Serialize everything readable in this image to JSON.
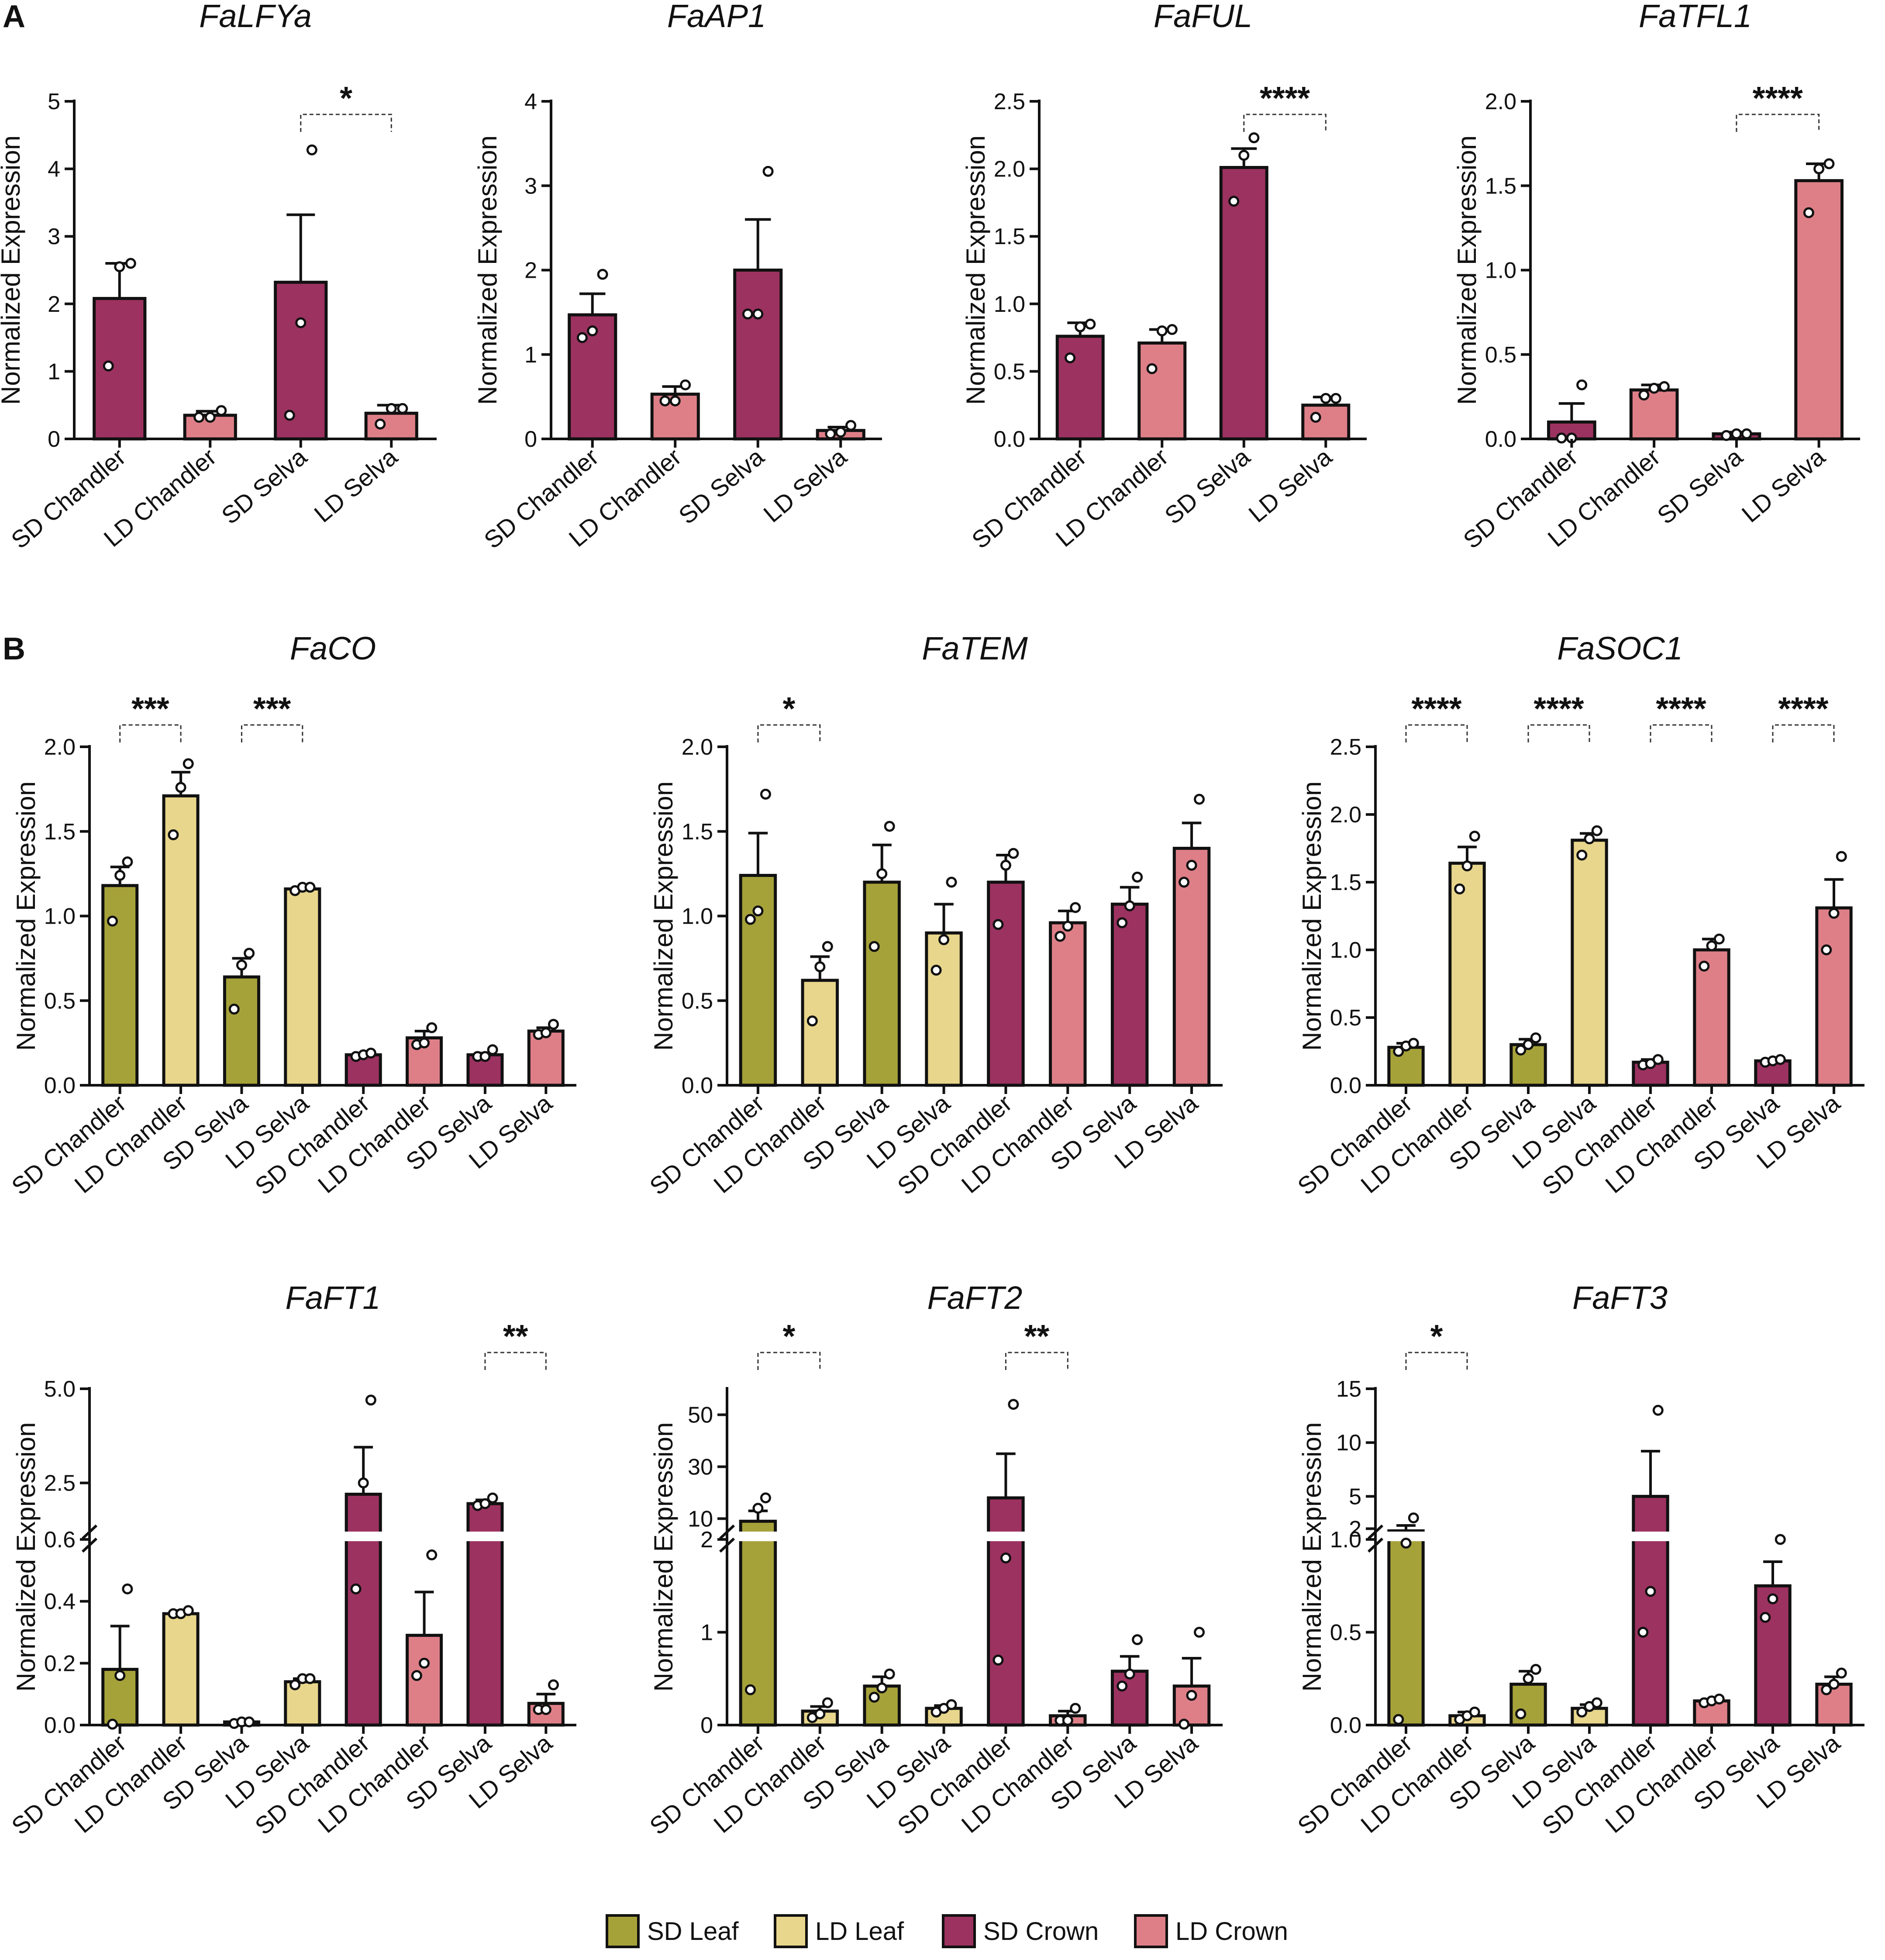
{
  "colors": {
    "SD Leaf": "#a6a23a",
    "LD Leaf": "#e8d68c",
    "SD Crown": "#9c3260",
    "LD Crown": "#de7f88"
  },
  "legend": [
    {
      "label": "SD Leaf",
      "color": "#a6a23a"
    },
    {
      "label": "LD Leaf",
      "color": "#e8d68c"
    },
    {
      "label": "SD Crown",
      "color": "#9c3260"
    },
    {
      "label": "LD Crown",
      "color": "#de7f88"
    }
  ],
  "chart_data": [
    {
      "panel": "A",
      "type": "bar",
      "title": "FaLFYa",
      "ylabel": "Normalized Expression",
      "ylim": [
        0,
        5
      ],
      "yticks": [
        0,
        1,
        2,
        3,
        4,
        5
      ],
      "categories": [
        "SD Chandler",
        "LD Chandler",
        "SD Selva",
        "LD Selva"
      ],
      "groups": [
        "SD Crown",
        "LD Crown",
        "SD Crown",
        "LD Crown"
      ],
      "values": [
        2.08,
        0.35,
        2.32,
        0.38
      ],
      "errors": [
        0.52,
        0.06,
        1.0,
        0.12
      ],
      "points": [
        [
          1.08,
          2.55,
          2.6
        ],
        [
          0.32,
          0.32,
          0.42
        ],
        [
          0.35,
          1.72,
          4.28
        ],
        [
          0.22,
          0.45,
          0.45
        ]
      ],
      "significance": [
        {
          "from": 2,
          "to": 3,
          "label": "*"
        }
      ]
    },
    {
      "panel": "A",
      "type": "bar",
      "title": "FaAP1",
      "ylabel": "Normalized Expression",
      "ylim": [
        0,
        4
      ],
      "yticks": [
        0,
        1,
        2,
        3,
        4
      ],
      "categories": [
        "SD Chandler",
        "LD Chandler",
        "SD Selva",
        "LD Selva"
      ],
      "groups": [
        "SD Crown",
        "LD Crown",
        "SD Crown",
        "LD Crown"
      ],
      "values": [
        1.47,
        0.53,
        2.0,
        0.1
      ],
      "errors": [
        0.25,
        0.09,
        0.6,
        0.04
      ],
      "points": [
        [
          1.2,
          1.28,
          1.95
        ],
        [
          0.45,
          0.45,
          0.64
        ],
        [
          1.48,
          1.48,
          3.17
        ],
        [
          0.06,
          0.08,
          0.16
        ]
      ],
      "significance": []
    },
    {
      "panel": "A",
      "type": "bar",
      "title": "FaFUL",
      "ylabel": "Normalized Expression",
      "ylim": [
        0,
        2.5
      ],
      "yticks": [
        0.0,
        0.5,
        1.0,
        1.5,
        2.0,
        2.5
      ],
      "categories": [
        "SD Chandler",
        "LD Chandler",
        "SD Selva",
        "LD Selva"
      ],
      "groups": [
        "SD Crown",
        "LD Crown",
        "SD Crown",
        "LD Crown"
      ],
      "values": [
        0.76,
        0.71,
        2.01,
        0.25
      ],
      "errors": [
        0.1,
        0.1,
        0.14,
        0.06
      ],
      "points": [
        [
          0.6,
          0.83,
          0.85
        ],
        [
          0.52,
          0.8,
          0.81
        ],
        [
          1.76,
          2.1,
          2.23
        ],
        [
          0.16,
          0.3,
          0.3
        ]
      ],
      "significance": [
        {
          "from": 2,
          "to": 3,
          "label": "****"
        }
      ]
    },
    {
      "panel": "A",
      "type": "bar",
      "title": "FaTFL1",
      "ylabel": "Normalized Expression",
      "ylim": [
        0,
        2.0
      ],
      "yticks": [
        0.0,
        0.5,
        1.0,
        1.5,
        2.0
      ],
      "categories": [
        "SD Chandler",
        "LD Chandler",
        "SD Selva",
        "LD Selva"
      ],
      "groups": [
        "SD Crown",
        "LD Crown",
        "SD Crown",
        "LD Crown"
      ],
      "values": [
        0.1,
        0.29,
        0.03,
        1.53
      ],
      "errors": [
        0.11,
        0.03,
        0.01,
        0.1
      ],
      "points": [
        [
          0.0,
          0.0,
          0.32
        ],
        [
          0.26,
          0.3,
          0.31
        ],
        [
          0.02,
          0.03,
          0.03
        ],
        [
          1.34,
          1.6,
          1.63
        ]
      ],
      "significance": [
        {
          "from": 2,
          "to": 3,
          "label": "****"
        }
      ]
    },
    {
      "panel": "B",
      "type": "bar",
      "title": "FaCO",
      "ylabel": "Normalized Expression",
      "ylim": [
        0,
        2.0
      ],
      "yticks": [
        0.0,
        0.5,
        1.0,
        1.5,
        2.0
      ],
      "categories": [
        "SD Chandler",
        "LD Chandler",
        "SD Selva",
        "LD Selva",
        "SD Chandler",
        "LD Chandler",
        "SD Selva",
        "LD Selva"
      ],
      "groups": [
        "SD Leaf",
        "LD Leaf",
        "SD Leaf",
        "LD Leaf",
        "SD Crown",
        "LD Crown",
        "SD Crown",
        "LD Crown"
      ],
      "values": [
        1.18,
        1.71,
        0.64,
        1.16,
        0.18,
        0.28,
        0.18,
        0.32
      ],
      "errors": [
        0.11,
        0.14,
        0.11,
        0.01,
        0.01,
        0.04,
        0.01,
        0.02
      ],
      "points": [
        [
          0.97,
          1.24,
          1.32
        ],
        [
          1.48,
          1.76,
          1.9
        ],
        [
          0.45,
          0.71,
          0.78
        ],
        [
          1.15,
          1.17,
          1.17
        ],
        [
          0.17,
          0.18,
          0.19
        ],
        [
          0.24,
          0.25,
          0.34
        ],
        [
          0.17,
          0.17,
          0.21
        ],
        [
          0.3,
          0.31,
          0.36
        ]
      ],
      "significance": [
        {
          "from": 0,
          "to": 1,
          "label": "***"
        },
        {
          "from": 2,
          "to": 3,
          "label": "***"
        }
      ]
    },
    {
      "panel": "B",
      "type": "bar",
      "title": "FaTEM",
      "ylabel": "Normalized Expression",
      "ylim": [
        0,
        2.0
      ],
      "yticks": [
        0.0,
        0.5,
        1.0,
        1.5,
        2.0
      ],
      "categories": [
        "SD Chandler",
        "LD Chandler",
        "SD Selva",
        "LD Selva",
        "SD Chandler",
        "LD Chandler",
        "SD Selva",
        "LD Selva"
      ],
      "groups": [
        "SD Leaf",
        "LD Leaf",
        "SD Leaf",
        "LD Leaf",
        "SD Crown",
        "LD Crown",
        "SD Crown",
        "LD Crown"
      ],
      "values": [
        1.24,
        0.62,
        1.2,
        0.9,
        1.2,
        0.96,
        1.07,
        1.4
      ],
      "errors": [
        0.25,
        0.14,
        0.22,
        0.17,
        0.16,
        0.07,
        0.1,
        0.15
      ],
      "points": [
        [
          0.98,
          1.03,
          1.72
        ],
        [
          0.38,
          0.7,
          0.82
        ],
        [
          0.82,
          1.25,
          1.53
        ],
        [
          0.68,
          0.86,
          1.2
        ],
        [
          0.95,
          1.3,
          1.37
        ],
        [
          0.88,
          0.94,
          1.05
        ],
        [
          0.96,
          1.06,
          1.23
        ],
        [
          1.2,
          1.3,
          1.69
        ]
      ],
      "significance": [
        {
          "from": 0,
          "to": 1,
          "label": "*"
        }
      ]
    },
    {
      "panel": "B",
      "type": "bar",
      "title": "FaSOC1",
      "ylabel": "Normalized Expression",
      "ylim": [
        0,
        2.5
      ],
      "yticks": [
        0.0,
        0.5,
        1.0,
        1.5,
        2.0,
        2.5
      ],
      "categories": [
        "SD Chandler",
        "LD Chandler",
        "SD Selva",
        "LD Selva",
        "SD Chandler",
        "LD Chandler",
        "SD Selva",
        "LD Selva"
      ],
      "groups": [
        "SD Leaf",
        "LD Leaf",
        "SD Leaf",
        "LD Leaf",
        "SD Crown",
        "LD Crown",
        "SD Crown",
        "LD Crown"
      ],
      "values": [
        0.28,
        1.64,
        0.3,
        1.81,
        0.17,
        1.0,
        0.18,
        1.31
      ],
      "errors": [
        0.03,
        0.12,
        0.04,
        0.05,
        0.02,
        0.08,
        0.01,
        0.21
      ],
      "points": [
        [
          0.25,
          0.29,
          0.31
        ],
        [
          1.45,
          1.62,
          1.84
        ],
        [
          0.26,
          0.3,
          0.35
        ],
        [
          1.7,
          1.82,
          1.88
        ],
        [
          0.15,
          0.16,
          0.19
        ],
        [
          0.88,
          1.03,
          1.08
        ],
        [
          0.17,
          0.18,
          0.19
        ],
        [
          1.0,
          1.27,
          1.69
        ]
      ],
      "significance": [
        {
          "from": 0,
          "to": 1,
          "label": "****"
        },
        {
          "from": 2,
          "to": 3,
          "label": "****"
        },
        {
          "from": 4,
          "to": 5,
          "label": "****"
        },
        {
          "from": 6,
          "to": 7,
          "label": "****"
        }
      ]
    },
    {
      "panel": "B",
      "type": "bar",
      "title": "FaFT1",
      "ylabel": "Normalized Expression",
      "axis_break": {
        "lower": [
          0,
          0.6
        ],
        "upper": [
          1,
          5.0
        ]
      },
      "yticks_lower": [
        0.0,
        0.2,
        0.4,
        0.6
      ],
      "yticks_upper": [
        2.5,
        5.0
      ],
      "categories": [
        "SD Chandler",
        "LD Chandler",
        "SD Selva",
        "LD Selva",
        "SD Chandler",
        "LD Chandler",
        "SD Selva",
        "LD Selva"
      ],
      "groups": [
        "SD Leaf",
        "LD Leaf",
        "SD Leaf",
        "LD Leaf",
        "SD Crown",
        "LD Crown",
        "SD Crown",
        "LD Crown"
      ],
      "values": [
        0.18,
        0.36,
        0.01,
        0.14,
        2.2,
        0.29,
        1.95,
        0.07
      ],
      "errors": [
        0.14,
        0.01,
        0.0,
        0.01,
        1.25,
        0.14,
        0.1,
        0.03
      ],
      "points": [
        [
          0.0,
          0.16,
          0.44
        ],
        [
          0.36,
          0.36,
          0.37
        ],
        [
          0.005,
          0.01,
          0.01
        ],
        [
          0.13,
          0.15,
          0.15
        ],
        [
          0.44,
          2.5,
          4.7
        ],
        [
          0.16,
          0.2,
          0.55
        ],
        [
          1.9,
          1.95,
          2.1
        ],
        [
          0.05,
          0.05,
          0.13
        ]
      ],
      "significance": [
        {
          "from": 6,
          "to": 7,
          "label": "**"
        }
      ]
    },
    {
      "panel": "B",
      "type": "bar",
      "title": "FaFT2",
      "ylabel": "Normalized Expression",
      "axis_break": {
        "lower": [
          0,
          2
        ],
        "upper": [
          2,
          60
        ]
      },
      "yticks_lower": [
        0,
        1,
        2
      ],
      "yticks_upper": [
        10,
        30,
        50
      ],
      "categories": [
        "SD Chandler",
        "LD Chandler",
        "SD Selva",
        "LD Selva",
        "SD Chandler",
        "LD Chandler",
        "SD Selva",
        "LD Selva"
      ],
      "groups": [
        "SD Leaf",
        "LD Leaf",
        "SD Leaf",
        "LD Leaf",
        "SD Crown",
        "LD Crown",
        "SD Crown",
        "LD Crown"
      ],
      "values": [
        9,
        0.15,
        0.42,
        0.18,
        18,
        0.1,
        0.58,
        0.42
      ],
      "errors": [
        4,
        0.05,
        0.1,
        0.03,
        17,
        0.05,
        0.16,
        0.3
      ],
      "points": [
        [
          0.38,
          14,
          18
        ],
        [
          0.08,
          0.12,
          0.24
        ],
        [
          0.3,
          0.4,
          0.55
        ],
        [
          0.14,
          0.18,
          0.22
        ],
        [
          0.7,
          1.8,
          54
        ],
        [
          0.05,
          0.05,
          0.18
        ],
        [
          0.42,
          0.55,
          0.92
        ],
        [
          0.0,
          0.32,
          1.0
        ]
      ],
      "significance": [
        {
          "from": 0,
          "to": 1,
          "label": "*"
        },
        {
          "from": 4,
          "to": 5,
          "label": "**"
        }
      ]
    },
    {
      "panel": "B",
      "type": "bar",
      "title": "FaFT3",
      "ylabel": "Normalized Expression",
      "axis_break": {
        "lower": [
          0,
          1.0
        ],
        "upper": [
          1,
          15
        ]
      },
      "yticks_lower": [
        0.0,
        0.5,
        1.0
      ],
      "yticks_upper": [
        2,
        5,
        10,
        15
      ],
      "categories": [
        "SD Chandler",
        "LD Chandler",
        "SD Selva",
        "LD Selva",
        "SD Chandler",
        "LD Chandler",
        "SD Selva",
        "LD Selva"
      ],
      "groups": [
        "SD Leaf",
        "LD Leaf",
        "SD Leaf",
        "LD Leaf",
        "SD Crown",
        "LD Crown",
        "SD Crown",
        "LD Crown"
      ],
      "values": [
        1.8,
        0.05,
        0.22,
        0.09,
        5,
        0.13,
        0.75,
        0.22
      ],
      "errors": [
        0.5,
        0.02,
        0.07,
        0.02,
        4.2,
        0.01,
        0.13,
        0.04
      ],
      "points": [
        [
          0.03,
          0.98,
          3
        ],
        [
          0.03,
          0.05,
          0.07
        ],
        [
          0.06,
          0.25,
          0.3
        ],
        [
          0.07,
          0.1,
          0.12
        ],
        [
          0.5,
          0.72,
          13
        ],
        [
          0.12,
          0.13,
          0.14
        ],
        [
          0.58,
          0.68,
          1.0
        ],
        [
          0.19,
          0.22,
          0.28
        ]
      ],
      "significance": [
        {
          "from": 0,
          "to": 1,
          "label": "*"
        }
      ]
    }
  ]
}
